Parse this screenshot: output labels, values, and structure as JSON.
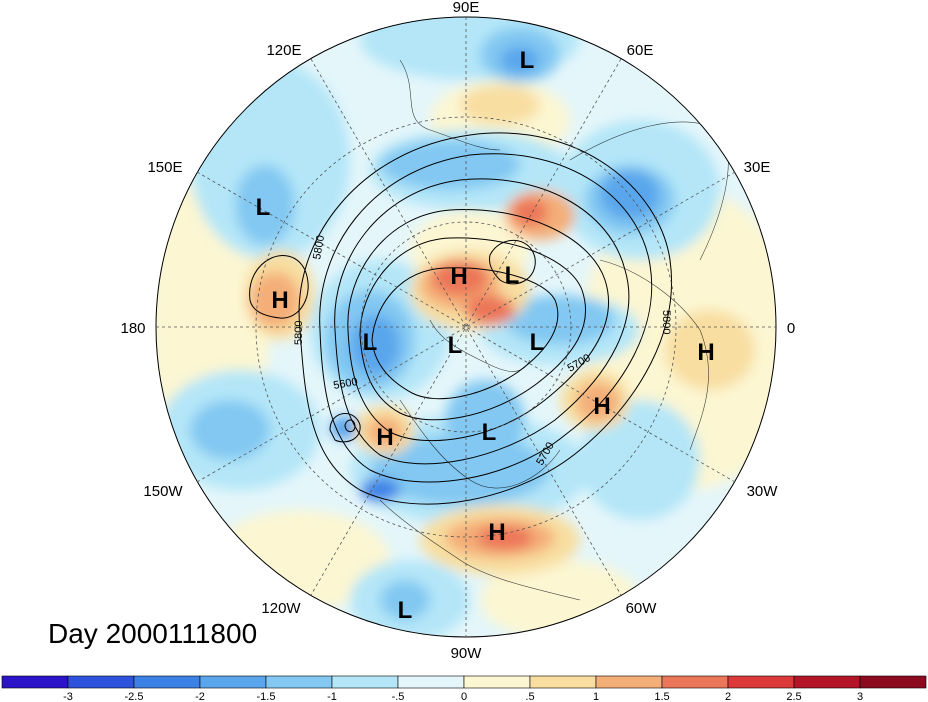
{
  "title": "Day 2000111800",
  "longitude_labels": [
    "90E",
    "60E",
    "30E",
    "0",
    "30W",
    "60W",
    "90W",
    "120W",
    "150W",
    "180",
    "150E",
    "120E"
  ],
  "highs_lows": [
    "L",
    "L",
    "L",
    "H",
    "L",
    "H",
    "L",
    "L",
    "L",
    "H",
    "H",
    "H",
    "L",
    "H",
    "L"
  ],
  "contour_labels": [
    "5800",
    "5800",
    "5600",
    "5700",
    "5700",
    "5800"
  ],
  "colorbar": {
    "ticks": [
      "-3",
      "-2.5",
      "-2",
      "-1.5",
      "-1",
      "-.5",
      "0",
      ".5",
      "1",
      "1.5",
      "2",
      "2.5",
      "3"
    ],
    "colors": [
      "#2b14c8",
      "#2f52dc",
      "#3c82e6",
      "#5aa6ec",
      "#82c8f2",
      "#b4e6f8",
      "#e4f6fa",
      "#fcf6d2",
      "#f8dea0",
      "#f4ae78",
      "#ec7658",
      "#dc3a3a",
      "#b41428",
      "#8c0a1e"
    ]
  },
  "colors": {
    "ocean_neutral": "#e4f6fa",
    "warm_light": "#fcf6d2",
    "cool_light": "#b4e6f8"
  }
}
